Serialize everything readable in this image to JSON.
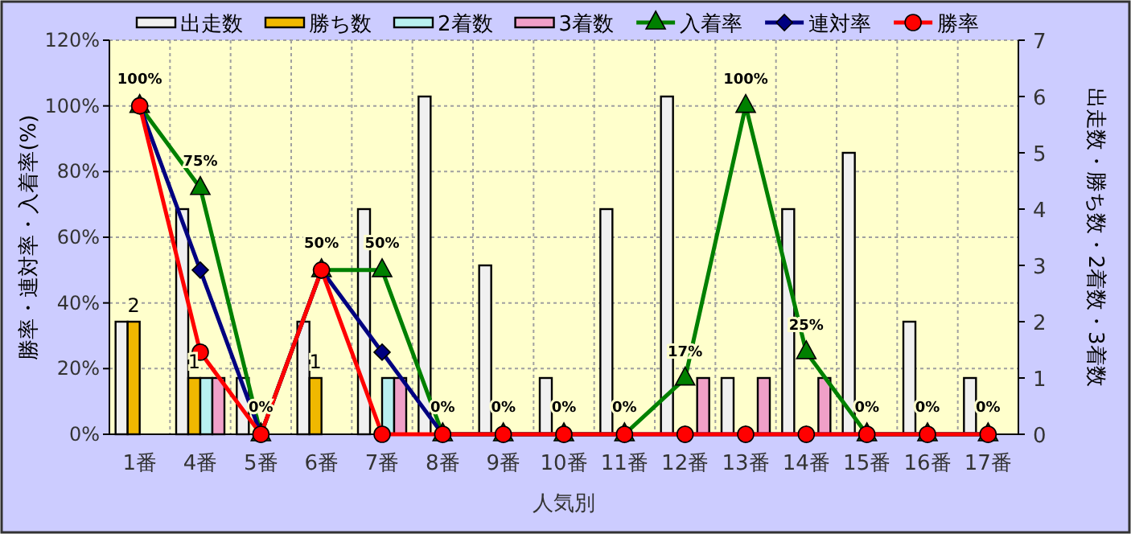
{
  "chart_data": {
    "type": "bar",
    "xlabel": "人気別",
    "ylabel": "勝率・連対率・入着率(%)",
    "y2label": "出走数・勝ち数・2着数・3着数",
    "categories": [
      "1番",
      "4番",
      "5番",
      "6番",
      "7番",
      "8番",
      "9番",
      "10番",
      "11番",
      "12番",
      "13番",
      "14番",
      "15番",
      "16番",
      "17番"
    ],
    "series": [
      {
        "name": "出走数",
        "axis": "y2",
        "color": "#f0f0f0",
        "values": [
          2,
          4,
          1,
          2,
          4,
          6,
          3,
          1,
          4,
          6,
          1,
          4,
          5,
          2,
          1
        ]
      },
      {
        "name": "勝ち数",
        "axis": "y2",
        "color": "#f0b800",
        "values": [
          2,
          1,
          0,
          1,
          0,
          0,
          0,
          0,
          0,
          0,
          0,
          0,
          0,
          0,
          0
        ],
        "value_labels": [
          "2",
          "1",
          null,
          "1",
          null,
          null,
          null,
          null,
          null,
          null,
          null,
          null,
          null,
          null,
          null
        ]
      },
      {
        "name": "2着数",
        "axis": "y2",
        "color": "#b8f0f0",
        "values": [
          0,
          1,
          0,
          0,
          1,
          0,
          0,
          0,
          0,
          0,
          0,
          0,
          0,
          0,
          0
        ]
      },
      {
        "name": "3着数",
        "axis": "y2",
        "color": "#f0a0c8",
        "values": [
          0,
          1,
          0,
          0,
          1,
          0,
          0,
          0,
          0,
          1,
          1,
          1,
          0,
          0,
          0
        ]
      },
      {
        "name": "入着率",
        "type": "line",
        "marker": "triangle",
        "color": "#008000",
        "values": [
          100,
          75,
          0,
          50,
          50,
          0,
          0,
          0,
          0,
          17,
          100,
          25,
          0,
          0,
          0
        ],
        "value_labels": [
          "100%",
          "75%",
          "0%",
          "50%",
          "50%",
          "0%",
          "0%",
          "0%",
          "0%",
          "17%",
          "100%",
          "25%",
          "0%",
          "0%",
          "0%"
        ]
      },
      {
        "name": "連対率",
        "type": "line",
        "marker": "diamond",
        "color": "#000080",
        "values": [
          100,
          50,
          0,
          50,
          25,
          0,
          0,
          0,
          0,
          0,
          0,
          0,
          0,
          0,
          0
        ]
      },
      {
        "name": "勝率",
        "type": "line",
        "marker": "circle",
        "color": "#ff0000",
        "values": [
          100,
          25,
          0,
          50,
          0,
          0,
          0,
          0,
          0,
          0,
          0,
          0,
          0,
          0,
          0
        ]
      }
    ],
    "ylim": [
      0,
      120
    ],
    "yticks": [
      {
        "value": 0,
        "label": "0%"
      },
      {
        "value": 20,
        "label": "20%"
      },
      {
        "value": 40,
        "label": "40%"
      },
      {
        "value": 60,
        "label": "60%"
      },
      {
        "value": 80,
        "label": "80%"
      },
      {
        "value": 100,
        "label": "100%"
      },
      {
        "value": 120,
        "label": "120%"
      }
    ],
    "y2lim": [
      0,
      7
    ],
    "y2ticks": [
      0,
      1,
      2,
      3,
      4,
      5,
      6,
      7
    ],
    "grid": true,
    "legend": "top"
  }
}
